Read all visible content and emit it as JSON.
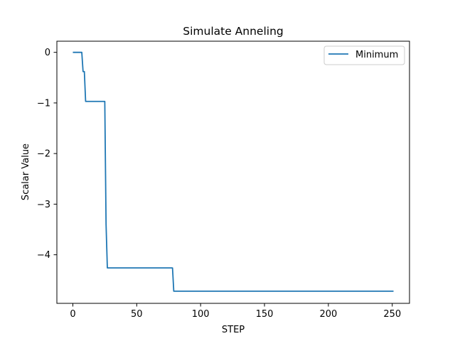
{
  "chart_data": {
    "type": "line",
    "title": "Simulate Anneling",
    "xlabel": "STEP",
    "ylabel": "Scalar Value",
    "xlim": [
      -12.5,
      263.5
    ],
    "ylim": [
      -4.96,
      0.22
    ],
    "xticks": [
      0,
      50,
      100,
      150,
      200,
      250
    ],
    "xtick_labels": [
      "0",
      "50",
      "100",
      "150",
      "200",
      "250"
    ],
    "yticks": [
      0,
      -1,
      -2,
      -3,
      -4
    ],
    "ytick_labels": [
      "0",
      "−1",
      "−2",
      "−3",
      "−4"
    ],
    "grid": false,
    "legend_position": "top-right",
    "series_color": "#1f77b4",
    "series": [
      {
        "name": "Minimum",
        "x": [
          0,
          7,
          8,
          9,
          10,
          25,
          26,
          27,
          78,
          79,
          251
        ],
        "y": [
          0,
          0,
          -0.38,
          -0.38,
          -0.97,
          -0.97,
          -3.4,
          -4.26,
          -4.26,
          -4.72,
          -4.72
        ]
      }
    ]
  }
}
